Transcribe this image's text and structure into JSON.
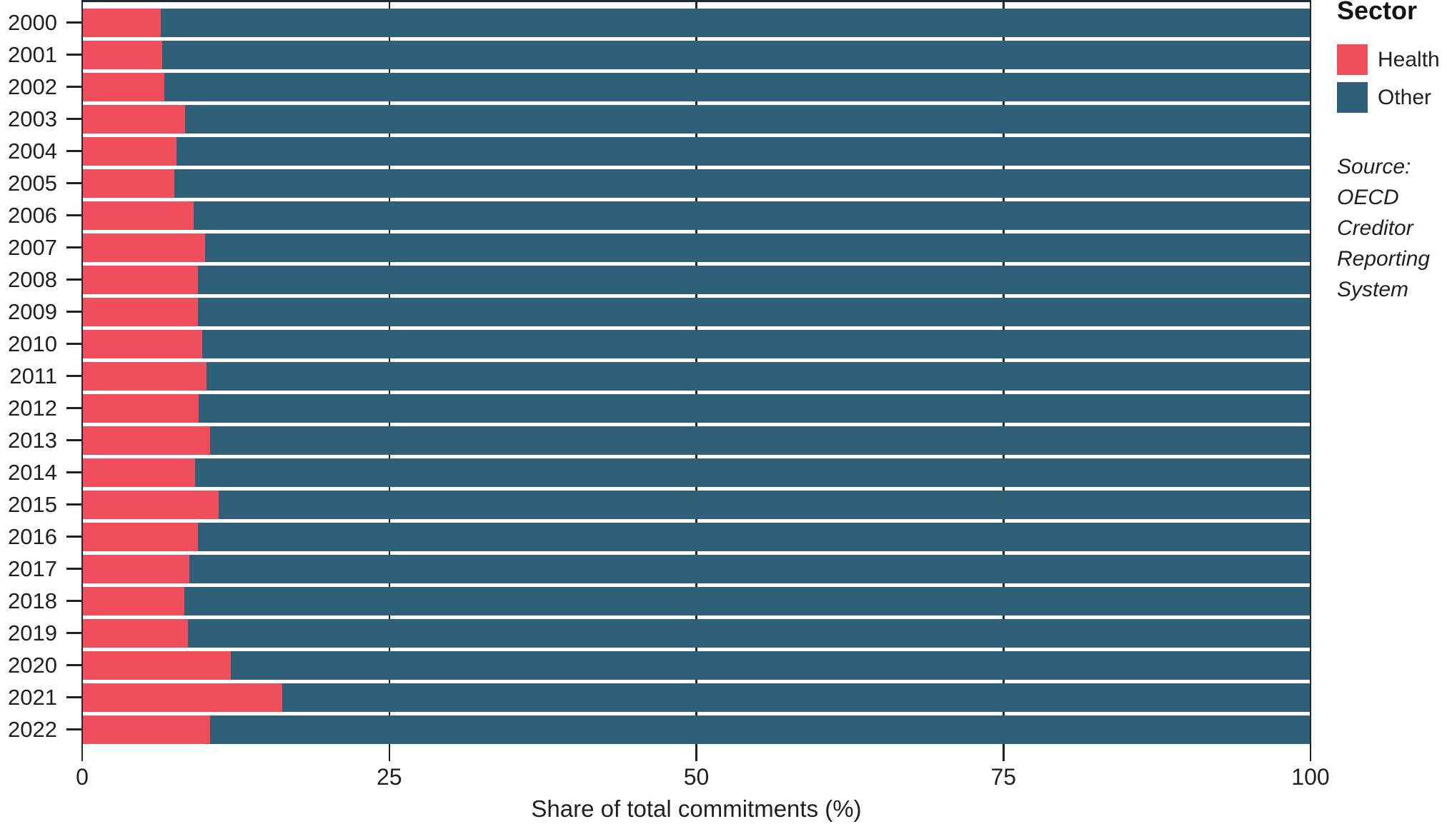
{
  "chart_data": {
    "type": "bar",
    "orientation": "horizontal",
    "stacked": true,
    "categories": [
      "2000",
      "2001",
      "2002",
      "2003",
      "2004",
      "2005",
      "2006",
      "2007",
      "2008",
      "2009",
      "2010",
      "2011",
      "2012",
      "2013",
      "2014",
      "2015",
      "2016",
      "2017",
      "2018",
      "2019",
      "2020",
      "2021",
      "2022"
    ],
    "series": [
      {
        "name": "Health",
        "color": "#f04d5d",
        "values": [
          6.4,
          6.5,
          6.7,
          8.4,
          7.7,
          7.5,
          9.1,
          10.0,
          9.4,
          9.4,
          9.8,
          10.1,
          9.5,
          10.4,
          9.2,
          11.1,
          9.4,
          8.7,
          8.3,
          8.6,
          12.1,
          16.3,
          10.4
        ]
      },
      {
        "name": "Other",
        "color": "#2f6078",
        "values": [
          93.6,
          93.5,
          93.3,
          91.6,
          92.3,
          92.5,
          90.9,
          90.0,
          90.6,
          90.6,
          90.2,
          89.9,
          90.5,
          89.6,
          90.8,
          88.9,
          90.6,
          91.3,
          91.7,
          91.4,
          87.9,
          83.7,
          89.6
        ]
      }
    ],
    "xlabel": "Share of total commitments (%)",
    "ylabel": "",
    "xlim": [
      0,
      100
    ],
    "x_ticks": [
      0,
      25,
      50,
      75,
      100
    ],
    "grid": "vertical gridlines at x ticks, visible between bars",
    "legend_position": "right"
  },
  "legend": {
    "title": "Sector",
    "items": [
      {
        "label": "Health",
        "color": "#f04d5d"
      },
      {
        "label": "Other",
        "color": "#2f6078"
      }
    ]
  },
  "source_note": {
    "text": "Source: OECD Creditor Reporting System",
    "lines": [
      "Source:",
      "OECD",
      "Creditor",
      "Reporting",
      "System"
    ]
  },
  "colors": {
    "health": "#f04d5d",
    "other": "#2f6078",
    "text": "#1c2128",
    "grid": "#1f2a33",
    "background": "#ffffff"
  }
}
